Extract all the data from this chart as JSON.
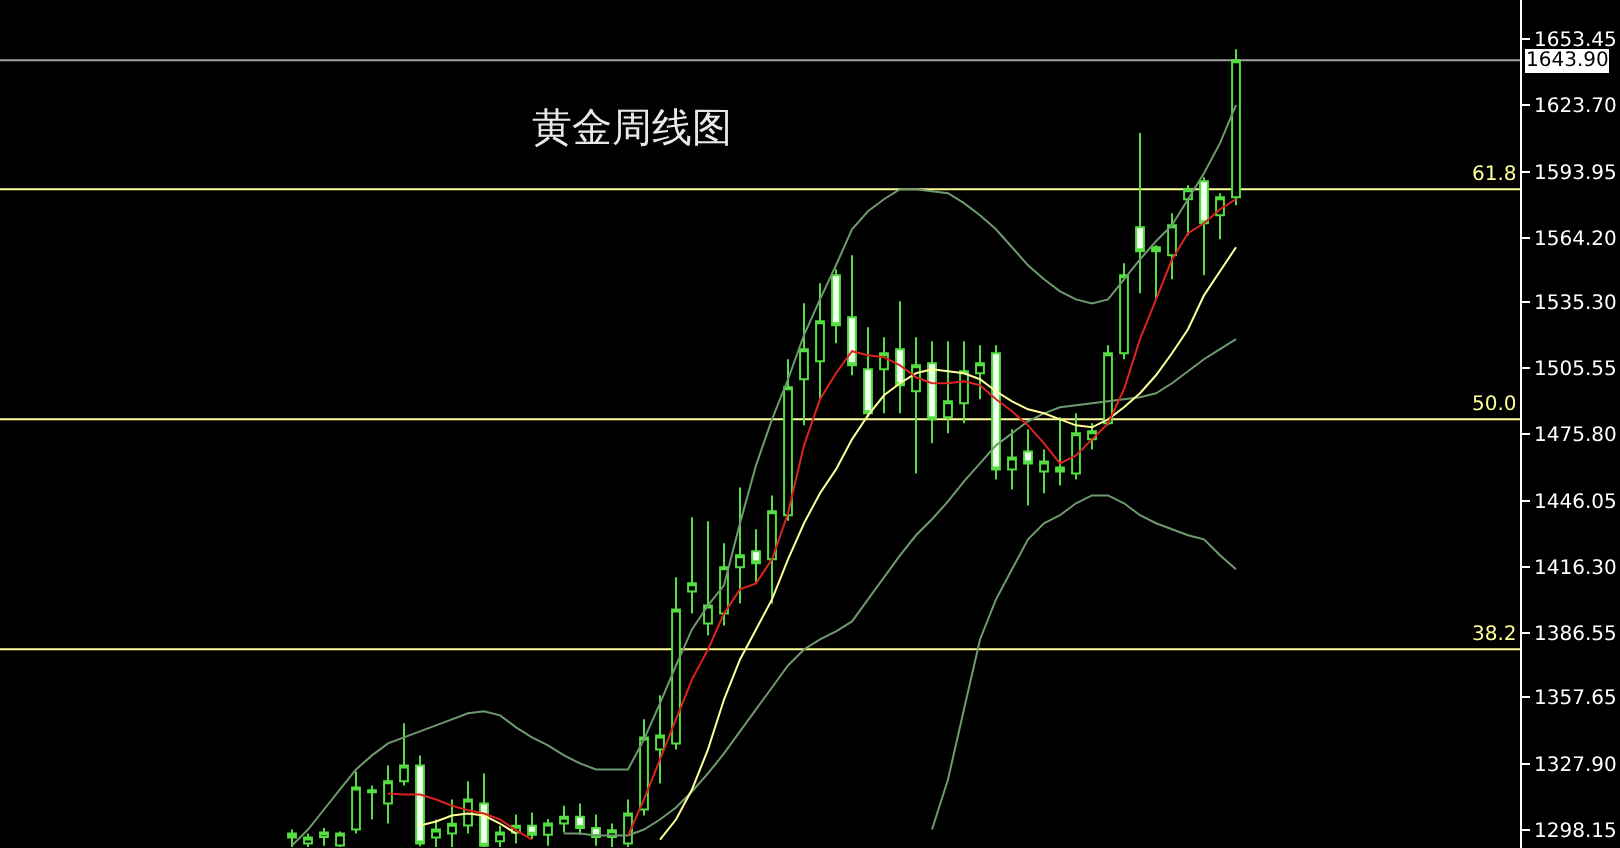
{
  "chart_data": {
    "type": "candlestick",
    "title": "黄金周线图",
    "categories": [
      null,
      null,
      null,
      null,
      null,
      null,
      null,
      null,
      null,
      null,
      null,
      null,
      null,
      null,
      null,
      null,
      null,
      null,
      null,
      null,
      null,
      null,
      null,
      null,
      null,
      null,
      null,
      null,
      null,
      null,
      null,
      null,
      null,
      null,
      null,
      null,
      null,
      null,
      null,
      null,
      null,
      null,
      null,
      null,
      null,
      null,
      null,
      null,
      null,
      null,
      null,
      null,
      null,
      null,
      null,
      null,
      null,
      null,
      null,
      null
    ],
    "ohlc": [
      [
        1294.7,
        1298.3,
        1290.5,
        1296.5
      ],
      [
        1292.0,
        1296.5,
        1290.5,
        1294.7
      ],
      [
        1295.0,
        1299.0,
        1291.0,
        1297.0
      ],
      [
        1291.1,
        1297.4,
        1290.5,
        1296.5
      ],
      [
        1298.3,
        1324.4,
        1296.5,
        1317.2
      ],
      [
        1315.0,
        1318.1,
        1302.8,
        1316.0
      ],
      [
        1310.0,
        1327.1,
        1301.0,
        1320.0
      ],
      [
        1320.0,
        1346.0,
        1318.1,
        1327.1
      ],
      [
        1327.1,
        1331.6,
        1290.8,
        1292.0
      ],
      [
        1294.7,
        1302.8,
        1290.5,
        1298.3
      ],
      [
        1296.5,
        1311.8,
        1290.5,
        1300.9
      ],
      [
        1300.1,
        1320.0,
        1296.5,
        1311.8
      ],
      [
        1310.0,
        1323.5,
        1290.5,
        1291.0
      ],
      [
        1293.0,
        1300.0,
        1290.5,
        1297.0
      ],
      [
        1297.0,
        1305.0,
        1292.0,
        1300.0
      ],
      [
        1300.0,
        1306.0,
        1294.0,
        1296.0
      ],
      [
        1296.0,
        1303.0,
        1291.0,
        1301.0
      ],
      [
        1301.0,
        1309.0,
        1297.0,
        1304.0
      ],
      [
        1304.0,
        1310.0,
        1296.0,
        1299.0
      ],
      [
        1299.0,
        1305.0,
        1291.0,
        1295.0
      ],
      [
        1295.0,
        1301.0,
        1290.5,
        1298.0
      ],
      [
        1292.0,
        1311.8,
        1290.5,
        1305.5
      ],
      [
        1307.3,
        1347.8,
        1304.6,
        1339.7
      ],
      [
        1334.3,
        1358.6,
        1319.0,
        1340.6
      ],
      [
        1337.0,
        1411.6,
        1334.3,
        1397.2
      ],
      [
        1405.3,
        1438.6,
        1395.4,
        1408.9
      ],
      [
        1390.9,
        1436.8,
        1385.5,
        1399.0
      ],
      [
        1395.4,
        1426.9,
        1390.0,
        1416.1
      ],
      [
        1416.1,
        1452.0,
        1399.9,
        1421.5
      ],
      [
        1423.3,
        1433.2,
        1408.9,
        1417.9
      ],
      [
        1419.7,
        1448.4,
        1399.9,
        1441.3
      ],
      [
        1439.5,
        1509.6,
        1437.0,
        1497.0
      ],
      [
        1500.6,
        1534.7,
        1479.9,
        1514.1
      ],
      [
        1508.7,
        1543.7,
        1491.6,
        1526.7
      ],
      [
        1547.3,
        1550.0,
        1516.8,
        1524.9
      ],
      [
        1528.5,
        1556.3,
        1502.4,
        1506.9
      ],
      [
        1505.1,
        1524.0,
        1483.5,
        1485.3
      ],
      [
        1505.1,
        1519.5,
        1485.3,
        1512.3
      ],
      [
        1514.1,
        1535.6,
        1485.3,
        1497.9
      ],
      [
        1495.2,
        1519.5,
        1458.3,
        1506.9
      ],
      [
        1507.8,
        1517.7,
        1471.8,
        1482.6
      ],
      [
        1483.5,
        1517.7,
        1476.3,
        1490.7
      ],
      [
        1489.8,
        1517.7,
        1480.8,
        1504.2
      ],
      [
        1503.3,
        1515.9,
        1491.6,
        1507.8
      ],
      [
        1512.3,
        1515.9,
        1455.6,
        1460.1
      ],
      [
        1460.1,
        1478.1,
        1451.1,
        1465.5
      ],
      [
        1468.2,
        1478.1,
        1443.9,
        1462.8
      ],
      [
        1459.2,
        1469.1,
        1449.4,
        1463.7
      ],
      [
        1461.0,
        1483.5,
        1452.9,
        1459.2
      ],
      [
        1458.3,
        1485.3,
        1455.6,
        1476.3
      ],
      [
        1473.6,
        1480.8,
        1469.1,
        1477.2
      ],
      [
        1480.8,
        1515.9,
        1479.9,
        1512.3
      ],
      [
        1512.3,
        1552.7,
        1509.6,
        1547.3
      ],
      [
        1568.9,
        1611.2,
        1539.2,
        1558.1
      ],
      [
        1558.1,
        1560.8,
        1536.5,
        1559.9
      ],
      [
        1556.3,
        1575.2,
        1545.5,
        1569.8
      ],
      [
        1581.5,
        1587.8,
        1565.3,
        1586.0
      ],
      [
        1589.6,
        1591.4,
        1547.3,
        1570.7
      ],
      [
        1574.3,
        1584.2,
        1563.5,
        1582.4
      ],
      [
        1582.4,
        1648.9,
        1578.8,
        1643.9
      ]
    ],
    "color": "#55dd44",
    "series": [
      {
        "type": "line",
        "color": "#6e9a6e",
        "values": [
          1291.1,
          1298.3,
          1307.3,
          1316.3,
          1325.3,
          1331.6,
          1337.0,
          1339.7,
          1342.4,
          1345.1,
          1347.8,
          1350.5,
          1351.4,
          1349.6,
          1344.2,
          1339.7,
          1336.1,
          1331.6,
          1328.0,
          1325.3,
          1325.3,
          1325.3,
          1338.8,
          1355.0,
          1372.0,
          1388.2,
          1399.0,
          1408.0,
          1435.9,
          1461.9,
          1482.6,
          1500.6,
          1520.4,
          1536.5,
          1551.8,
          1568.0,
          1576.1,
          1581.5,
          1586.0,
          1586.0,
          1585.1,
          1584.2,
          1579.7,
          1574.3,
          1568.0,
          1559.9,
          1551.8,
          1545.5,
          1540.1,
          1536.5,
          1534.7,
          1536.5,
          1545.5,
          1554.5,
          1562.6,
          1569.8,
          1581.5,
          1593.2,
          1606.7,
          1623.8
        ]
      },
      {
        "type": "line",
        "color": "#6e9a6e",
        "values": [
          null,
          null,
          null,
          null,
          null,
          null,
          null,
          null,
          null,
          null,
          null,
          null,
          null,
          null,
          null,
          null,
          null,
          1296.5,
          1296.5,
          1295.6,
          1295.6,
          1295.6,
          1298.3,
          1302.8,
          1308.2,
          1315.4,
          1323.5,
          1332.5,
          1342.4,
          1352.3,
          1362.1,
          1372.0,
          1379.2,
          1383.7,
          1387.3,
          1391.8,
          1401.7,
          1411.6,
          1421.5,
          1430.5,
          1437.7,
          1445.7,
          1454.7,
          1462.8,
          1470.9,
          1476.3,
          1481.7,
          1485.3,
          1488.0,
          1488.9,
          1489.8,
          1490.7,
          1491.6,
          1492.5,
          1494.3,
          1498.8,
          1504.2,
          1509.6,
          1514.1,
          1518.6
        ]
      },
      {
        "type": "line",
        "color": "#6e9a6e",
        "values": [
          null,
          null,
          null,
          null,
          null,
          null,
          null,
          null,
          null,
          null,
          null,
          null,
          null,
          null,
          null,
          null,
          null,
          null,
          null,
          null,
          null,
          null,
          null,
          null,
          null,
          null,
          null,
          null,
          null,
          null,
          null,
          null,
          null,
          null,
          null,
          null,
          null,
          null,
          null,
          null,
          1298.3,
          1320.8,
          1352.3,
          1383.7,
          1401.7,
          1415.2,
          1428.7,
          1435.9,
          1439.5,
          1444.9,
          1448.4,
          1448.4,
          1444.9,
          1439.5,
          1435.9,
          1433.2,
          1430.5,
          1428.7,
          1421.5,
          1415.2
        ]
      },
      {
        "type": "line",
        "color": "#ffff99",
        "values": [
          null,
          null,
          null,
          null,
          null,
          null,
          null,
          null,
          1300.1,
          1301.9,
          1304.6,
          1305.5,
          1304.6,
          1301.0,
          1296.5,
          null,
          null,
          null,
          null,
          null,
          null,
          null,
          null,
          1293.8,
          1302.8,
          1316.3,
          1334.3,
          1356.7,
          1374.7,
          1388.2,
          1401.7,
          1419.7,
          1435.9,
          1449.4,
          1460.1,
          1473.6,
          1484.4,
          1493.4,
          1498.8,
          1503.3,
          1505.1,
          1504.2,
          1503.3,
          1500.6,
          1495.2,
          1490.7,
          1487.1,
          1485.3,
          1482.6,
          1479.9,
          1479.0,
          1482.6,
          1488.0,
          1494.3,
          1502.4,
          1512.3,
          1523.1,
          1538.3,
          1549.1,
          1559.9
        ]
      },
      {
        "type": "line",
        "color": "#dd2222",
        "values": [
          null,
          null,
          null,
          null,
          null,
          null,
          1314.5,
          1314.0,
          1314.0,
          1311.8,
          1309.0,
          1307.0,
          1305.5,
          1302.8,
          1298.0,
          1293.8,
          null,
          null,
          null,
          null,
          null,
          1295.6,
          1311.8,
          1329.8,
          1347.8,
          1365.8,
          1379.2,
          1395.4,
          1406.2,
          1408.9,
          1419.7,
          1440.4,
          1470.9,
          1491.6,
          1503.3,
          1513.2,
          1511.4,
          1510.5,
          1506.9,
          1501.5,
          1498.8,
          1498.8,
          1499.7,
          1497.9,
          1491.6,
          1486.2,
          1479.9,
          1471.8,
          1462.8,
          1466.4,
          1473.6,
          1480.8,
          1496.1,
          1518.6,
          1536.5,
          1554.5,
          1566.2,
          1570.7,
          1577.0,
          1581.5
        ]
      }
    ],
    "ylim": [
      1290,
      1671
    ],
    "yticks": [
      1653.45,
      {
        "value": 1623.7,
        "label": "1623.70"
      },
      1593.95,
      {
        "value": 1564.2,
        "label": "1564.20"
      },
      {
        "value": 1535.3,
        "label": "1535.30"
      },
      1505.55,
      {
        "value": 1475.8,
        "label": "1475.80"
      },
      1446.05,
      {
        "value": 1416.3,
        "label": "1416.30"
      },
      1386.55,
      1357.65,
      {
        "value": 1327.9,
        "label": "1327.90"
      },
      1298.15
    ],
    "ref_lines": [
      {
        "axis": "y",
        "value": 1643.9,
        "label": "1643.90",
        "color": "#a0a0a0"
      },
      {
        "axis": "y",
        "value": 1586.0,
        "color": "#ffff99"
      },
      {
        "axis": "y",
        "value": 1482.6,
        "color": "#ffff99"
      },
      {
        "axis": "y",
        "value": 1379.3,
        "color": "#ffff99"
      }
    ],
    "annotations": [
      {
        "text": "61.8",
        "y": 1586.0
      },
      {
        "text": "50.0",
        "y": 1482.6
      },
      {
        "text": "38.2",
        "y": 1379.3
      }
    ],
    "tick_labels": "y",
    "grid": false
  }
}
